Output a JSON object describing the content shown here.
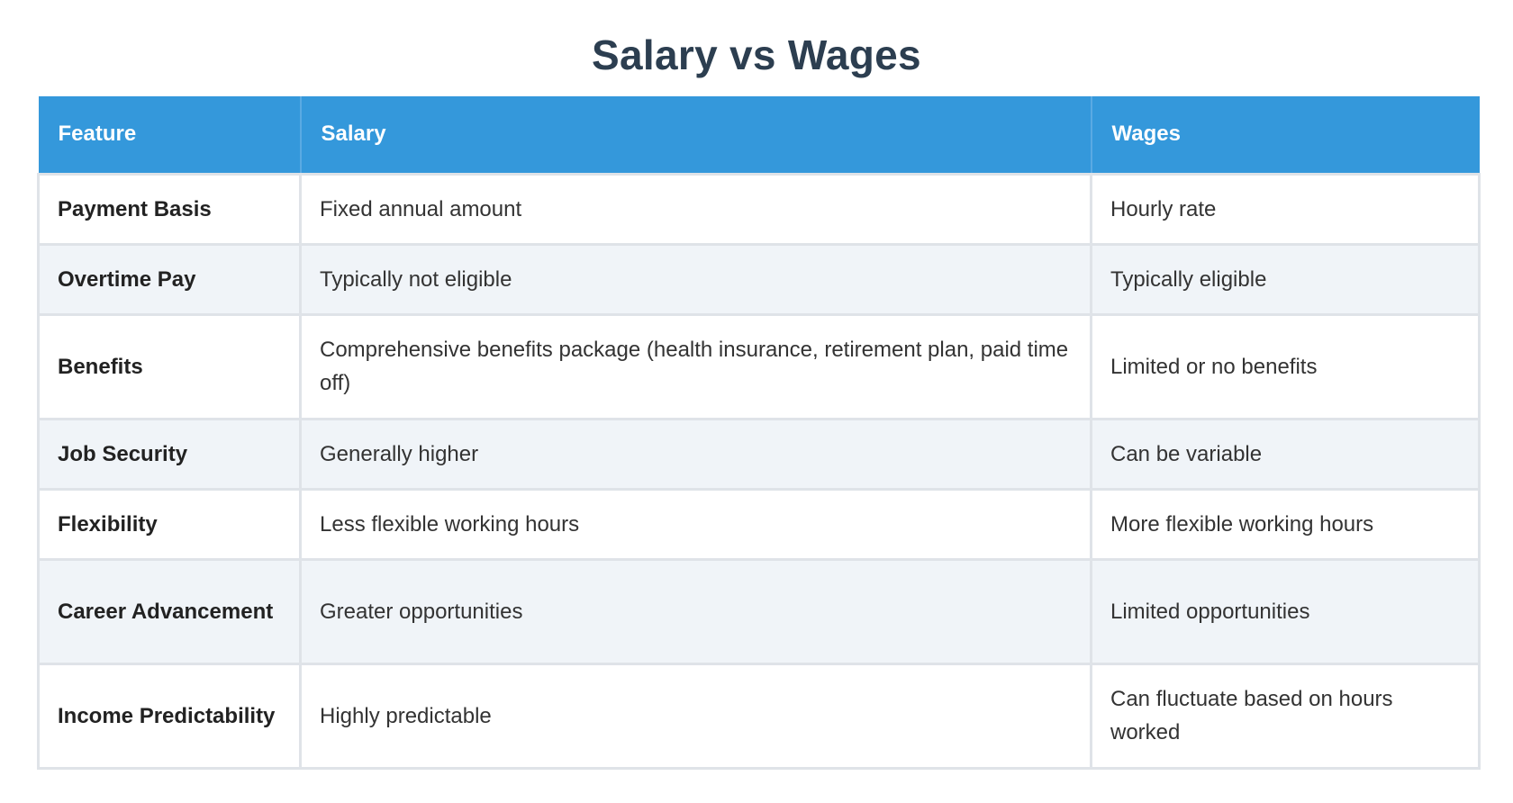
{
  "title": "Salary vs Wages",
  "table": {
    "headers": [
      "Feature",
      "Salary",
      "Wages"
    ],
    "rows": [
      {
        "feature": "Payment Basis",
        "salary": "Fixed annual amount",
        "wages": "Hourly rate"
      },
      {
        "feature": "Overtime Pay",
        "salary": "Typically not eligible",
        "wages": "Typically eligible"
      },
      {
        "feature": "Benefits",
        "salary": "Comprehensive benefits package (health insurance, retirement plan, paid time off)",
        "wages": "Limited or no benefits"
      },
      {
        "feature": "Job Security",
        "salary": "Generally higher",
        "wages": "Can be variable"
      },
      {
        "feature": "Flexibility",
        "salary": "Less flexible working hours",
        "wages": "More flexible working hours"
      },
      {
        "feature": "Career Advancement",
        "salary": "Greater opportunities",
        "wages": "Limited opportunities"
      },
      {
        "feature": "Income Predictability",
        "salary": "Highly predictable",
        "wages": "Can fluctuate based on hours worked"
      }
    ]
  },
  "colors": {
    "header_bg": "#3498db",
    "title": "#2c3e50",
    "row_alt_bg": "#f0f4f8",
    "border": "#dfe3e8"
  }
}
